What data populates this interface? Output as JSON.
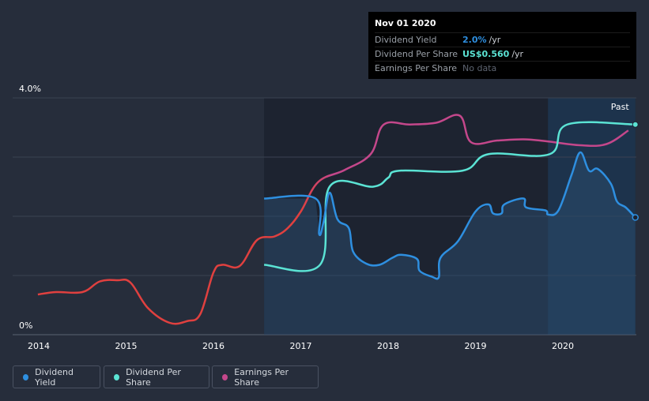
{
  "chart_data": {
    "type": "line",
    "x_ticks": [
      "2014",
      "2015",
      "2016",
      "2017",
      "2018",
      "2019",
      "2020"
    ],
    "y_labels": {
      "top": "4.0%",
      "bottom": "0%"
    },
    "past_label": "Past",
    "series": [
      {
        "name": "Dividend Yield",
        "color": "#2e8fe0",
        "points": [
          [
            2016.58,
            2.3
          ],
          [
            2017.17,
            2.3
          ],
          [
            2017.21,
            1.7
          ],
          [
            2017.26,
            1.9
          ],
          [
            2017.33,
            2.4
          ],
          [
            2017.42,
            1.95
          ],
          [
            2017.55,
            1.8
          ],
          [
            2017.6,
            1.4
          ],
          [
            2017.75,
            1.2
          ],
          [
            2017.9,
            1.18
          ],
          [
            2018.05,
            1.3
          ],
          [
            2018.15,
            1.35
          ],
          [
            2018.33,
            1.28
          ],
          [
            2018.36,
            1.08
          ],
          [
            2018.5,
            0.98
          ],
          [
            2018.58,
            0.97
          ],
          [
            2018.6,
            1.3
          ],
          [
            2018.8,
            1.58
          ],
          [
            2019.0,
            2.08
          ],
          [
            2019.15,
            2.2
          ],
          [
            2019.2,
            2.05
          ],
          [
            2019.3,
            2.05
          ],
          [
            2019.33,
            2.2
          ],
          [
            2019.55,
            2.3
          ],
          [
            2019.58,
            2.15
          ],
          [
            2019.8,
            2.1
          ],
          [
            2019.83,
            2.03
          ],
          [
            2019.95,
            2.1
          ],
          [
            2020.1,
            2.7
          ],
          [
            2020.2,
            3.08
          ],
          [
            2020.3,
            2.77
          ],
          [
            2020.4,
            2.8
          ],
          [
            2020.55,
            2.55
          ],
          [
            2020.62,
            2.25
          ],
          [
            2020.72,
            2.15
          ],
          [
            2020.83,
            1.98
          ]
        ]
      },
      {
        "name": "Dividend Per Share",
        "color": "#5be3d4",
        "points": [
          [
            2016.58,
            1.18
          ],
          [
            2017.22,
            1.18
          ],
          [
            2017.33,
            2.5
          ],
          [
            2017.83,
            2.5
          ],
          [
            2018.0,
            2.65
          ],
          [
            2018.13,
            2.77
          ],
          [
            2018.85,
            2.77
          ],
          [
            2019.15,
            3.05
          ],
          [
            2019.85,
            3.05
          ],
          [
            2020.05,
            3.55
          ],
          [
            2020.83,
            3.55
          ]
        ]
      },
      {
        "name": "Earnings Per Share",
        "color": "#c4478b",
        "points": [
          [
            2013.99,
            0.68
          ],
          [
            2014.2,
            0.72
          ],
          [
            2014.5,
            0.72
          ],
          [
            2014.7,
            0.9
          ],
          [
            2014.9,
            0.92
          ],
          [
            2015.05,
            0.88
          ],
          [
            2015.25,
            0.45
          ],
          [
            2015.5,
            0.2
          ],
          [
            2015.7,
            0.23
          ],
          [
            2015.85,
            0.35
          ],
          [
            2016.0,
            1.05
          ],
          [
            2016.1,
            1.18
          ],
          [
            2016.3,
            1.16
          ],
          [
            2016.5,
            1.6
          ],
          [
            2016.7,
            1.66
          ],
          [
            2016.85,
            1.8
          ],
          [
            2017.0,
            2.08
          ],
          [
            2017.2,
            2.58
          ],
          [
            2017.5,
            2.78
          ],
          [
            2017.8,
            3.05
          ],
          [
            2017.95,
            3.55
          ],
          [
            2018.25,
            3.55
          ],
          [
            2018.55,
            3.58
          ],
          [
            2018.82,
            3.7
          ],
          [
            2018.95,
            3.25
          ],
          [
            2019.25,
            3.28
          ],
          [
            2019.55,
            3.3
          ],
          [
            2019.8,
            3.27
          ],
          [
            2020.2,
            3.2
          ],
          [
            2020.5,
            3.22
          ],
          [
            2020.75,
            3.45
          ]
        ]
      }
    ],
    "y_range": [
      0,
      4.0
    ],
    "x_range": [
      2013.7,
      2020.9
    ],
    "shaded_region_start": 2016.58,
    "past_region_start": 2019.83,
    "end_x": 2020.83
  },
  "tooltip": {
    "date": "Nov 01 2020",
    "dividend_yield_label": "Dividend Yield",
    "dividend_yield_value": "2.0%",
    "dividend_yield_unit": "/yr",
    "dps_label": "Dividend Per Share",
    "dps_value": "US$0.560",
    "dps_unit": "/yr",
    "eps_label": "Earnings Per Share",
    "eps_value": "No data"
  },
  "legend": {
    "items": [
      {
        "label": "Dividend Yield",
        "color": "#2e8fe0"
      },
      {
        "label": "Dividend Per Share",
        "color": "#5be3d4"
      },
      {
        "label": "Earnings Per Share",
        "color": "#c4478b"
      }
    ]
  },
  "colors": {
    "background": "#262d3b",
    "plot_area": "#1d2330",
    "gridline": "#3a4252",
    "axis_text": "#ffffff",
    "area_fill": "#2a4a6b"
  }
}
